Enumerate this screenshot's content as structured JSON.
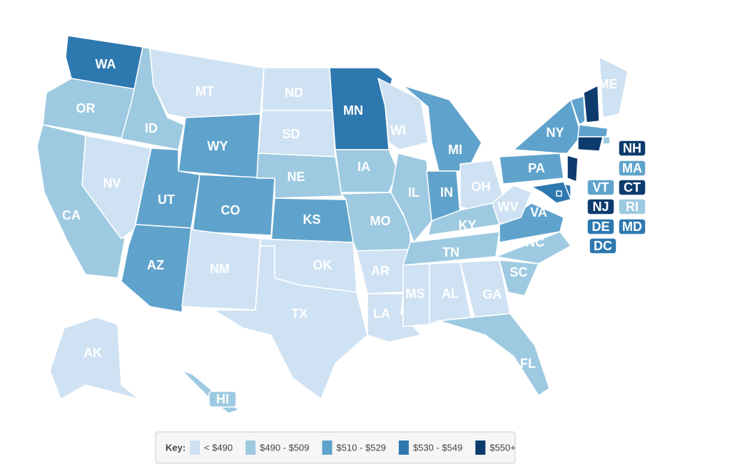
{
  "map": {
    "states": [
      {
        "label": "WA",
        "color": "#2e78b0"
      },
      {
        "label": "OR",
        "color": "#9ecae1"
      },
      {
        "label": "CA",
        "color": "#9ecae1"
      },
      {
        "label": "NV",
        "color": "#cfe2f3"
      },
      {
        "label": "ID",
        "color": "#9ecae1"
      },
      {
        "label": "MT",
        "color": "#cfe2f3"
      },
      {
        "label": "WY",
        "color": "#5fa3cc"
      },
      {
        "label": "UT",
        "color": "#5fa3cc"
      },
      {
        "label": "AZ",
        "color": "#5fa3cc"
      },
      {
        "label": "CO",
        "color": "#5fa3cc"
      },
      {
        "label": "NM",
        "color": "#cfe2f3"
      },
      {
        "label": "ND",
        "color": "#cfe2f3"
      },
      {
        "label": "SD",
        "color": "#cfe2f3"
      },
      {
        "label": "NE",
        "color": "#9ecae1"
      },
      {
        "label": "KS",
        "color": "#5fa3cc"
      },
      {
        "label": "OK",
        "color": "#cfe2f3"
      },
      {
        "label": "TX",
        "color": "#cfe2f3"
      },
      {
        "label": "MN",
        "color": "#2e78b0"
      },
      {
        "label": "IA",
        "color": "#9ecae1"
      },
      {
        "label": "MO",
        "color": "#9ecae1"
      },
      {
        "label": "AR",
        "color": "#cfe2f3"
      },
      {
        "label": "LA",
        "color": "#cfe2f3"
      },
      {
        "label": "WI",
        "color": "#cfe2f3"
      },
      {
        "label": "IL",
        "color": "#9ecae1"
      },
      {
        "label": "MI",
        "color": "#5fa3cc"
      },
      {
        "label": "IN",
        "color": "#5fa3cc"
      },
      {
        "label": "OH",
        "color": "#cfe2f3"
      },
      {
        "label": "KY",
        "color": "#9ecae1"
      },
      {
        "label": "TN",
        "color": "#9ecae1"
      },
      {
        "label": "MS",
        "color": "#cfe2f3"
      },
      {
        "label": "AL",
        "color": "#cfe2f3"
      },
      {
        "label": "GA",
        "color": "#cfe2f3"
      },
      {
        "label": "FL",
        "color": "#9ecae1"
      },
      {
        "label": "SC",
        "color": "#9ecae1"
      },
      {
        "label": "NC",
        "color": "#9ecae1"
      },
      {
        "label": "VA",
        "color": "#5fa3cc"
      },
      {
        "label": "WV",
        "color": "#cfe2f3"
      },
      {
        "label": "PA",
        "color": "#5fa3cc"
      },
      {
        "label": "NY",
        "color": "#5fa3cc"
      },
      {
        "label": "ME",
        "color": "#cfe2f3"
      },
      {
        "label": "VT",
        "color": "#5fa3cc"
      },
      {
        "label": "NH",
        "color": "#0d3b6e"
      },
      {
        "label": "MA",
        "color": "#5fa3cc"
      },
      {
        "label": "RI",
        "color": "#9ecae1"
      },
      {
        "label": "CT",
        "color": "#0d3b6e"
      },
      {
        "label": "NJ",
        "color": "#0d3b6e"
      },
      {
        "label": "DE",
        "color": "#2e78b0"
      },
      {
        "label": "MD",
        "color": "#2e78b0"
      },
      {
        "label": "DC",
        "color": "#2e78b0"
      },
      {
        "label": "AK",
        "color": "#cfe2f3"
      },
      {
        "label": "HI",
        "color": "#9ecae1"
      }
    ],
    "legend": {
      "title": "Key:",
      "bins": [
        {
          "label": "< $490",
          "color": "#cfe2f3"
        },
        {
          "label": "$490 - $509",
          "color": "#9ecae1"
        },
        {
          "label": "$510 - $529",
          "color": "#5fa3cc"
        },
        {
          "label": "$530 - $549",
          "color": "#2e78b0"
        },
        {
          "label": "$550+",
          "color": "#0d3b6e"
        }
      ]
    }
  }
}
